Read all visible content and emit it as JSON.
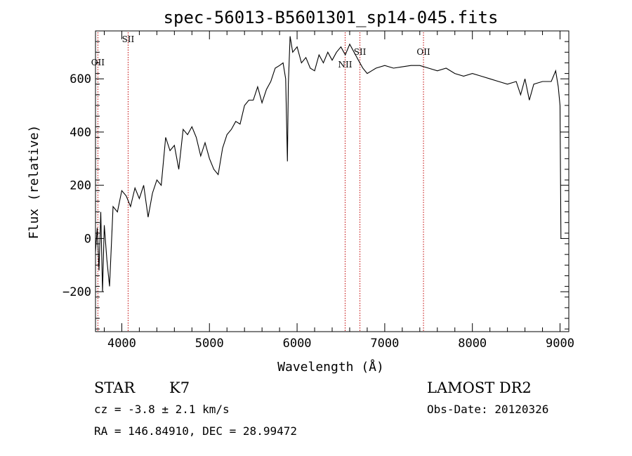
{
  "chart_data": {
    "type": "line",
    "title": "spec-56013-B5601301_sp14-045.fits",
    "xlabel": "Wavelength (Å)",
    "ylabel": "Flux (relative)",
    "xlim": [
      3700,
      9100
    ],
    "ylim": [
      -350,
      780
    ],
    "x_ticks": [
      4000,
      5000,
      6000,
      7000,
      8000,
      9000
    ],
    "y_ticks": [
      -200,
      0,
      200,
      400,
      600
    ],
    "grid": false,
    "series": [
      {
        "x": [
          3700,
          3720,
          3740,
          3760,
          3780,
          3800,
          3830,
          3860,
          3900,
          3950,
          4000,
          4050,
          4100,
          4150,
          4200,
          4250,
          4300,
          4350,
          4400,
          4450,
          4500,
          4550,
          4600,
          4650,
          4700,
          4750,
          4800,
          4850,
          4900,
          4950,
          5000,
          5050,
          5100,
          5150,
          5200,
          5250,
          5300,
          5350,
          5400,
          5450,
          5500,
          5550,
          5600,
          5650,
          5700,
          5750,
          5800,
          5840,
          5870,
          5890,
          5900,
          5920,
          5950,
          6000,
          6050,
          6100,
          6150,
          6200,
          6250,
          6300,
          6350,
          6400,
          6450,
          6500,
          6550,
          6600,
          6650,
          6700,
          6750,
          6800,
          6850,
          6900,
          7000,
          7100,
          7200,
          7300,
          7400,
          7500,
          7600,
          7700,
          7800,
          7900,
          8000,
          8100,
          8200,
          8300,
          8400,
          8500,
          8550,
          8600,
          8650,
          8700,
          8800,
          8900,
          8950,
          8980,
          9000,
          9010
        ],
        "y": [
          -50,
          40,
          -120,
          100,
          -200,
          50,
          -80,
          -180,
          120,
          100,
          180,
          160,
          120,
          190,
          150,
          200,
          80,
          170,
          220,
          200,
          380,
          330,
          350,
          260,
          410,
          390,
          420,
          380,
          310,
          360,
          300,
          260,
          240,
          340,
          390,
          410,
          440,
          430,
          500,
          520,
          520,
          570,
          510,
          560,
          590,
          640,
          650,
          660,
          600,
          290,
          580,
          760,
          700,
          720,
          660,
          680,
          640,
          630,
          690,
          660,
          700,
          670,
          700,
          720,
          690,
          730,
          700,
          670,
          640,
          620,
          630,
          640,
          650,
          640,
          645,
          650,
          650,
          640,
          630,
          640,
          620,
          610,
          620,
          610,
          600,
          590,
          580,
          590,
          540,
          600,
          520,
          580,
          590,
          590,
          630,
          570,
          500,
          0
        ]
      }
    ],
    "annotations": [
      {
        "label": "OII",
        "x": 3727
      },
      {
        "label": "SII",
        "x": 4072
      },
      {
        "label": "NII",
        "x": 6548
      },
      {
        "label": "SII",
        "x": 6717
      },
      {
        "label": "OII",
        "x": 7442
      }
    ]
  },
  "info": {
    "object_class": "STAR",
    "subclass": "K7",
    "cz": "cz = -3.8 ± 2.1 km/s",
    "coords": "RA = 146.84910, DEC =  28.99472",
    "survey": "LAMOST DR2",
    "obs_date": "Obs-Date: 20120326"
  }
}
